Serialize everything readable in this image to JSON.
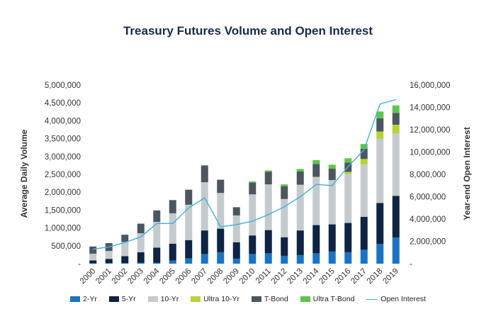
{
  "chart_data": {
    "type": "bar",
    "title": "Treasury Futures Volume and Open Interest",
    "xlabel": "",
    "ylabel": "Average Daily Volume",
    "y2label": "Year-end Open Interest",
    "ylim": [
      0,
      5000000
    ],
    "y2lim": [
      0,
      16000000
    ],
    "yticks": [
      "-",
      "500,000",
      "1,000,000",
      "1,500,000",
      "2,000,000",
      "2,500,000",
      "3,000,000",
      "3,500,000",
      "4,000,000",
      "4,500,000",
      "5,000,000"
    ],
    "y2ticks": [
      "-",
      "2,000,000",
      "4,000,000",
      "6,000,000",
      "8,000,000",
      "10,000,000",
      "12,000,000",
      "14,000,000",
      "16,000,000"
    ],
    "categories": [
      "2000",
      "2001",
      "2002",
      "2003",
      "2004",
      "2005",
      "2006",
      "2007",
      "2008",
      "2009",
      "2010",
      "2011",
      "2012",
      "2013",
      "2014",
      "2015",
      "2016",
      "2017",
      "2018",
      "2019"
    ],
    "series": [
      {
        "name": "2-Yr",
        "color": "#1a73c0",
        "values": [
          10000,
          15000,
          20000,
          30000,
          30000,
          90000,
          150000,
          270000,
          320000,
          140000,
          270000,
          290000,
          220000,
          240000,
          290000,
          340000,
          320000,
          390000,
          550000,
          730000
        ]
      },
      {
        "name": "5-Yr",
        "color": "#0f2342",
        "values": [
          80000,
          120000,
          190000,
          290000,
          420000,
          470000,
          510000,
          660000,
          660000,
          460000,
          520000,
          650000,
          520000,
          690000,
          790000,
          760000,
          820000,
          920000,
          1150000,
          1170000
        ]
      },
      {
        "name": "10-Yr",
        "color": "#c4cacd",
        "values": [
          190000,
          220000,
          400000,
          530000,
          720000,
          850000,
          990000,
          1350000,
          1000000,
          750000,
          1150000,
          1280000,
          1070000,
          1280000,
          1350000,
          1240000,
          1370000,
          1470000,
          1800000,
          1750000
        ]
      },
      {
        "name": "Ultra 10-Yr",
        "color": "#b5d334",
        "values": [
          0,
          0,
          0,
          0,
          0,
          0,
          0,
          0,
          0,
          0,
          0,
          0,
          0,
          0,
          0,
          0,
          60000,
          150000,
          200000,
          240000
        ]
      },
      {
        "name": "T-Bond",
        "color": "#4c5660",
        "values": [
          200000,
          220000,
          200000,
          270000,
          320000,
          370000,
          420000,
          470000,
          370000,
          230000,
          330000,
          350000,
          360000,
          370000,
          360000,
          320000,
          260000,
          290000,
          370000,
          330000
        ]
      },
      {
        "name": "Ultra T-Bond",
        "color": "#5cc64a",
        "values": [
          0,
          0,
          0,
          0,
          0,
          0,
          0,
          0,
          0,
          0,
          30000,
          40000,
          50000,
          70000,
          110000,
          110000,
          120000,
          130000,
          190000,
          210000
        ]
      }
    ],
    "line": {
      "name": "Open Interest",
      "color": "#3fb1dd",
      "axis": "right",
      "values": [
        1300000,
        1500000,
        1900000,
        2400000,
        3600000,
        3600000,
        5000000,
        5900000,
        3300000,
        3500000,
        3800000,
        4400000,
        5100000,
        6000000,
        7100000,
        7000000,
        8700000,
        10200000,
        14300000,
        14700000
      ]
    }
  }
}
